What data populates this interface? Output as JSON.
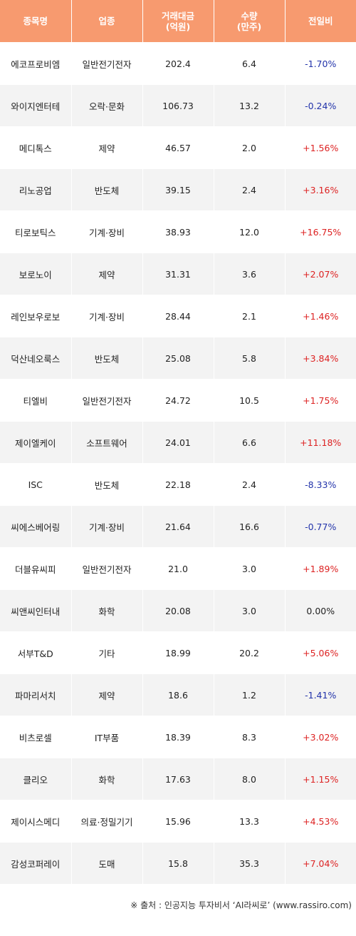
{
  "columns": {
    "name": "종목명",
    "sector": "업종",
    "amount_line1": "거래대금",
    "amount_line2": "(억원)",
    "volume_line1": "수량",
    "volume_line2": "(만주)",
    "change": "전일비"
  },
  "rows": [
    {
      "name": "에코프로비엠",
      "sector": "일반전기전자",
      "amount": "202.4",
      "volume": "6.4",
      "change": "-1.70%"
    },
    {
      "name": "와이지엔터테",
      "sector": "오락·문화",
      "amount": "106.73",
      "volume": "13.2",
      "change": "-0.24%"
    },
    {
      "name": "메디톡스",
      "sector": "제약",
      "amount": "46.57",
      "volume": "2.0",
      "change": "+1.56%"
    },
    {
      "name": "리노공업",
      "sector": "반도체",
      "amount": "39.15",
      "volume": "2.4",
      "change": "+3.16%"
    },
    {
      "name": "티로보틱스",
      "sector": "기계·장비",
      "amount": "38.93",
      "volume": "12.0",
      "change": "+16.75%"
    },
    {
      "name": "보로노이",
      "sector": "제약",
      "amount": "31.31",
      "volume": "3.6",
      "change": "+2.07%"
    },
    {
      "name": "레인보우로보",
      "sector": "기계·장비",
      "amount": "28.44",
      "volume": "2.1",
      "change": "+1.46%"
    },
    {
      "name": "덕산네오룩스",
      "sector": "반도체",
      "amount": "25.08",
      "volume": "5.8",
      "change": "+3.84%"
    },
    {
      "name": "티엘비",
      "sector": "일반전기전자",
      "amount": "24.72",
      "volume": "10.5",
      "change": "+1.75%"
    },
    {
      "name": "제이엘케이",
      "sector": "소프트웨어",
      "amount": "24.01",
      "volume": "6.6",
      "change": "+11.18%"
    },
    {
      "name": "ISC",
      "sector": "반도체",
      "amount": "22.18",
      "volume": "2.4",
      "change": "-8.33%"
    },
    {
      "name": "씨에스베어링",
      "sector": "기계·장비",
      "amount": "21.64",
      "volume": "16.6",
      "change": "-0.77%"
    },
    {
      "name": "더블유씨피",
      "sector": "일반전기전자",
      "amount": "21.0",
      "volume": "3.0",
      "change": "+1.89%"
    },
    {
      "name": "씨앤씨인터내",
      "sector": "화학",
      "amount": "20.08",
      "volume": "3.0",
      "change": "0.00%"
    },
    {
      "name": "서부T&D",
      "sector": "기타",
      "amount": "18.99",
      "volume": "20.2",
      "change": "+5.06%"
    },
    {
      "name": "파마리서치",
      "sector": "제약",
      "amount": "18.6",
      "volume": "1.2",
      "change": "-1.41%"
    },
    {
      "name": "비츠로셀",
      "sector": "IT부품",
      "amount": "18.39",
      "volume": "8.3",
      "change": "+3.02%"
    },
    {
      "name": "클리오",
      "sector": "화학",
      "amount": "17.63",
      "volume": "8.0",
      "change": "+1.15%"
    },
    {
      "name": "제이시스메디",
      "sector": "의료·정밀기기",
      "amount": "15.96",
      "volume": "13.3",
      "change": "+4.53%"
    },
    {
      "name": "감성코퍼레이",
      "sector": "도매",
      "amount": "15.8",
      "volume": "35.3",
      "change": "+7.04%"
    }
  ],
  "colors": {
    "header_bg": "#f79a6f",
    "negative": "#2233aa",
    "positive": "#dd2222",
    "stripe": "#f3f3f3"
  },
  "source": "※ 출처 : 인공지능 투자비서 ‘AI라씨로’ (www.rassiro.com)"
}
